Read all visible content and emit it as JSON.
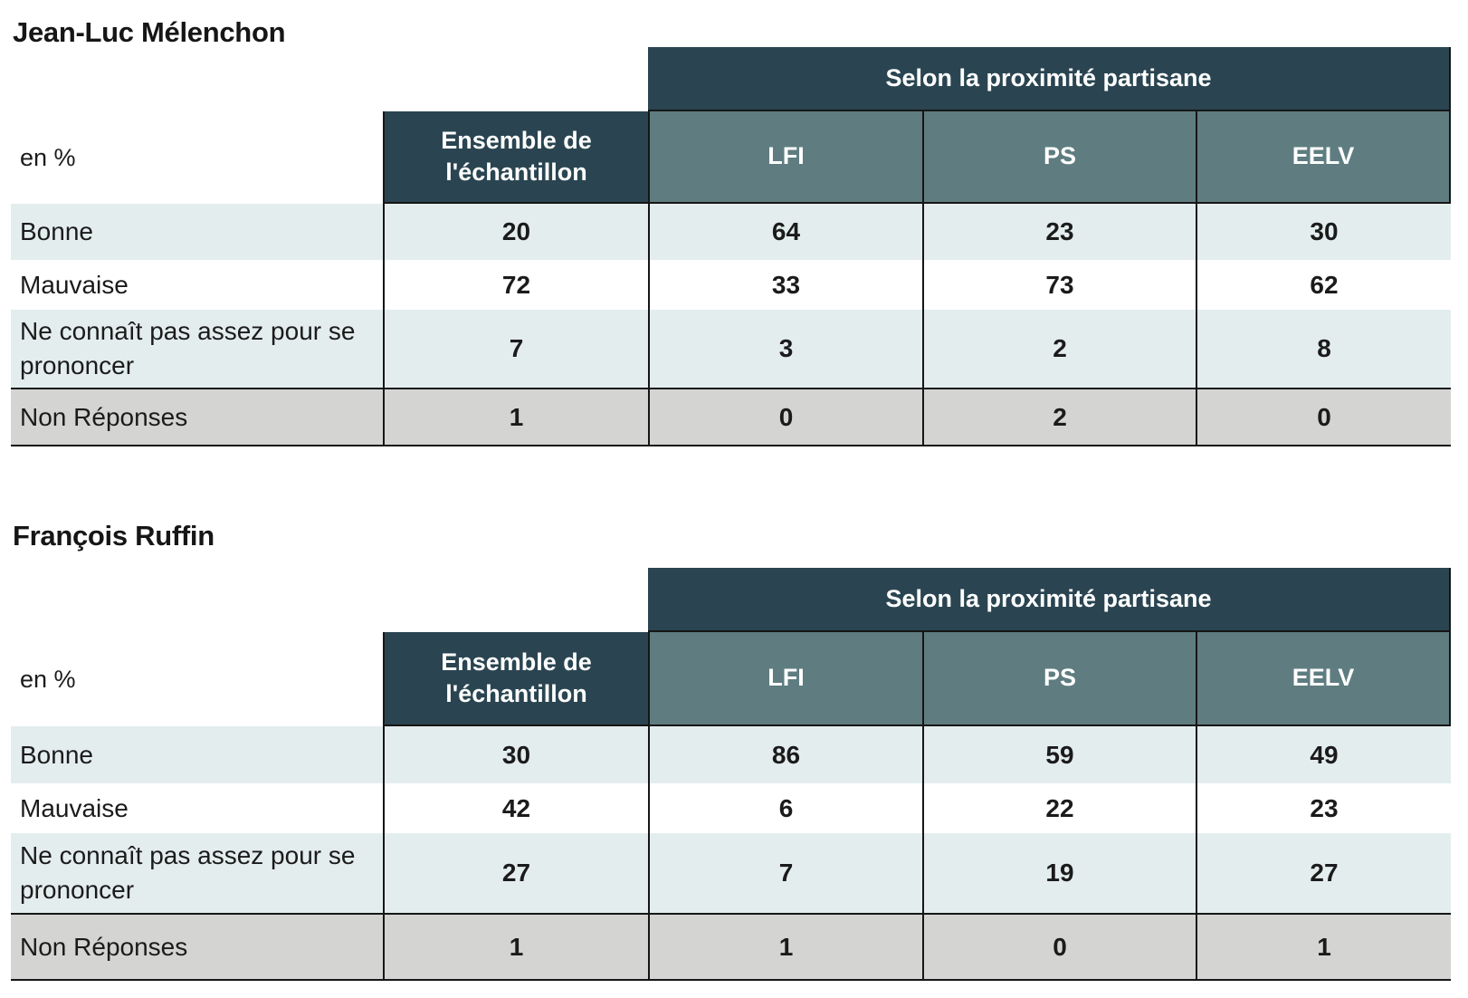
{
  "colors": {
    "band_dark": "#2a4551",
    "party_header_teal": "#5f7d80",
    "row_light": "#e4edee",
    "row_gray": "#d4d4d2",
    "rule_black": "#161616",
    "text": "#1b1b1b"
  },
  "chart_data": [
    {
      "type": "table",
      "title": "Jean-Luc Mélenchon",
      "unit_label": "en %",
      "group_header": "Selon la proximité partisane",
      "columns": [
        "Ensemble de l'échantillon",
        "LFI",
        "PS",
        "EELV"
      ],
      "rows": [
        {
          "label": "Bonne",
          "values": [
            "20",
            "64",
            "23",
            "30"
          ]
        },
        {
          "label": "Mauvaise",
          "values": [
            "72",
            "33",
            "73",
            "62"
          ]
        },
        {
          "label": "Ne connaît pas assez pour se prononcer",
          "values": [
            "7",
            "3",
            "2",
            "8"
          ]
        },
        {
          "label": "Non Réponses",
          "values": [
            "1",
            "0",
            "2",
            "0"
          ]
        }
      ]
    },
    {
      "type": "table",
      "title": "François Ruffin",
      "unit_label": "en %",
      "group_header": "Selon la proximité partisane",
      "columns": [
        "Ensemble de l'échantillon",
        "LFI",
        "PS",
        "EELV"
      ],
      "rows": [
        {
          "label": "Bonne",
          "values": [
            "30",
            "86",
            "59",
            "49"
          ]
        },
        {
          "label": "Mauvaise",
          "values": [
            "42",
            "6",
            "22",
            "23"
          ]
        },
        {
          "label": "Ne connaît pas assez pour se prononcer",
          "values": [
            "27",
            "7",
            "19",
            "27"
          ]
        },
        {
          "label": "Non Réponses",
          "values": [
            "1",
            "1",
            "0",
            "1"
          ]
        }
      ]
    }
  ]
}
